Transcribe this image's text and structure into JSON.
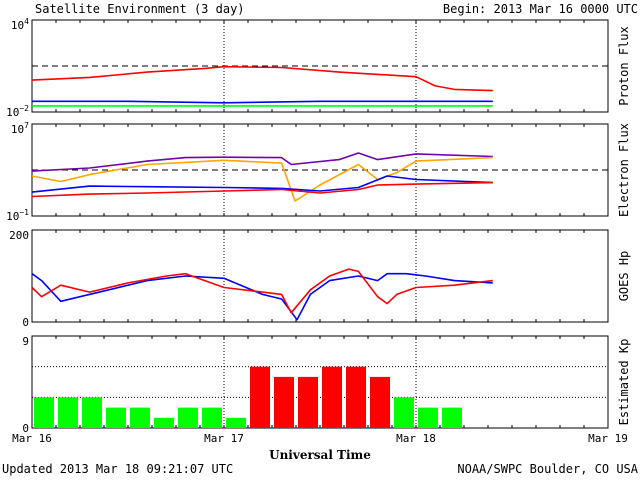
{
  "header": {
    "title": "Satellite Environment (3 day)",
    "begin": "Begin:  2013 Mar 16 0000 UTC"
  },
  "footer": {
    "updated": "Updated 2013 Mar 18 09:21:07 UTC",
    "credit": "NOAA/SWPC Boulder, CO USA"
  },
  "xaxis": {
    "title": "Universal Time",
    "ticks": [
      "Mar 16",
      "Mar 17",
      "Mar 18",
      "Mar 19"
    ]
  },
  "colors": {
    "red": "#ff0000",
    "blue": "#0000ff",
    "green": "#00ff00",
    "orange": "#ffa500",
    "purple": "#7000b0"
  },
  "chart_data": [
    {
      "type": "line",
      "ylabel": "Proton Flux",
      "yscale": "log",
      "ylim": [
        0.01,
        10000
      ],
      "ytick_labels": [
        "10^4",
        "10^-2"
      ],
      "threshold": 10,
      "x_unit": "days since Mar 16 0000 UTC",
      "series": [
        {
          "color": "red",
          "x": [
            0,
            0.3,
            0.6,
            0.9,
            1.0,
            1.3,
            1.6,
            2.0,
            2.1,
            2.2,
            2.4
          ],
          "y": [
            1.2,
            1.8,
            4,
            7,
            9,
            8,
            4,
            2,
            0.5,
            0.3,
            0.25
          ]
        },
        {
          "color": "blue",
          "x": [
            0,
            0.5,
            1.0,
            1.5,
            2.0,
            2.4
          ],
          "y": [
            0.05,
            0.05,
            0.04,
            0.05,
            0.05,
            0.05
          ]
        },
        {
          "color": "green",
          "x": [
            0,
            0.5,
            1.0,
            1.5,
            2.0,
            2.4
          ],
          "y": [
            0.025,
            0.025,
            0.025,
            0.025,
            0.025,
            0.025
          ]
        }
      ]
    },
    {
      "type": "line",
      "ylabel": "Electron Flux",
      "yscale": "log",
      "ylim": [
        0.1,
        10000000
      ],
      "ytick_labels": [
        "10^7",
        "10^-1"
      ],
      "threshold": 1000,
      "series": [
        {
          "color": "purple",
          "x": [
            0,
            0.3,
            0.6,
            0.8,
            1.0,
            1.3,
            1.35,
            1.6,
            1.7,
            1.8,
            2.0,
            2.4
          ],
          "y": [
            800,
            1500,
            6000,
            12000,
            13000,
            12000,
            3000,
            8000,
            30000,
            8000,
            25000,
            15000
          ]
        },
        {
          "color": "orange",
          "x": [
            0,
            0.15,
            0.3,
            0.6,
            1.0,
            1.3,
            1.37,
            1.5,
            1.7,
            1.8,
            1.9,
            2.0,
            2.4
          ],
          "y": [
            300,
            100,
            400,
            3000,
            7000,
            4000,
            2,
            50,
            3000,
            150,
            600,
            6000,
            12000
          ]
        },
        {
          "color": "blue",
          "x": [
            0,
            0.3,
            0.6,
            1.0,
            1.3,
            1.5,
            1.7,
            1.85,
            2.0,
            2.4
          ],
          "y": [
            12,
            40,
            35,
            30,
            25,
            15,
            30,
            300,
            150,
            80
          ]
        },
        {
          "color": "red",
          "x": [
            0,
            0.3,
            0.6,
            1.0,
            1.3,
            1.5,
            1.7,
            1.8,
            2.0,
            2.4
          ],
          "y": [
            5,
            8,
            10,
            15,
            20,
            10,
            20,
            50,
            60,
            80
          ]
        }
      ]
    },
    {
      "type": "line",
      "ylabel": "GOES Hp",
      "ylim": [
        0,
        200
      ],
      "ytick_labels": [
        "200",
        "0"
      ],
      "series": [
        {
          "color": "blue",
          "x": [
            0,
            0.05,
            0.15,
            0.25,
            0.4,
            0.6,
            0.8,
            1.0,
            1.2,
            1.3,
            1.38,
            1.45,
            1.55,
            1.7,
            1.8,
            1.85,
            1.95,
            2.05,
            2.2,
            2.4
          ],
          "y": [
            105,
            90,
            45,
            55,
            70,
            90,
            100,
            95,
            60,
            50,
            5,
            60,
            90,
            100,
            90,
            105,
            105,
            100,
            90,
            85
          ]
        },
        {
          "color": "red",
          "x": [
            0,
            0.05,
            0.15,
            0.3,
            0.5,
            0.7,
            0.8,
            1.0,
            1.2,
            1.3,
            1.35,
            1.45,
            1.55,
            1.65,
            1.7,
            1.8,
            1.85,
            1.9,
            2.0,
            2.2,
            2.4
          ],
          "y": [
            75,
            55,
            80,
            65,
            85,
            100,
            105,
            75,
            65,
            60,
            20,
            70,
            100,
            115,
            110,
            55,
            40,
            60,
            75,
            80,
            90
          ]
        }
      ]
    },
    {
      "type": "bar",
      "ylabel": "Estimated Kp",
      "ylim": [
        0,
        9
      ],
      "ytick_labels": [
        "9",
        "0"
      ],
      "x_unit": "3-hour intervals from Mar 16 0000 UTC",
      "values": [
        3,
        3,
        3,
        2,
        2,
        1,
        2,
        2,
        1,
        6,
        5,
        5,
        6,
        6,
        5,
        3,
        2,
        2
      ],
      "storm_threshold": 5,
      "below_color": "green",
      "storm_color": "red"
    }
  ]
}
